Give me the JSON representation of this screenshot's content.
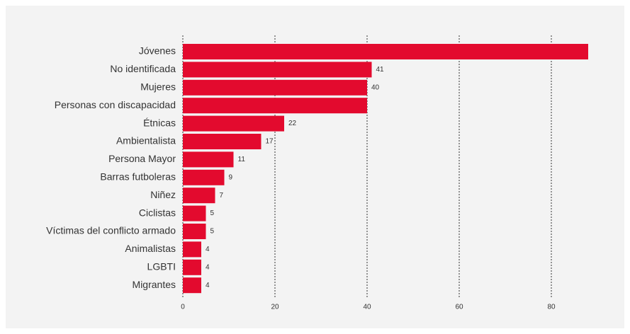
{
  "chart_data": {
    "type": "barh",
    "categories": [
      "Jóvenes",
      "No identificada",
      "Mujeres",
      "Personas con discapacidad",
      "Étnicas",
      "Ambientalista",
      "Persona Mayor",
      "Barras futboleras",
      "Niñez",
      "Ciclistas",
      "Víctimas del conflicto armado",
      "Animalistas",
      "LGBTI",
      "Migrantes"
    ],
    "values": [
      88,
      41,
      40,
      40,
      22,
      17,
      11,
      9,
      7,
      5,
      5,
      4,
      4,
      4
    ],
    "value_labels": [
      null,
      "41",
      "40",
      null,
      "22",
      "17",
      "11",
      "9",
      "7",
      "5",
      "5",
      "4",
      "4",
      "4"
    ],
    "color": "#e30a2e",
    "xlim": [
      0,
      90
    ],
    "xticks": [
      0,
      20,
      40,
      60,
      80
    ],
    "grid": true
  }
}
